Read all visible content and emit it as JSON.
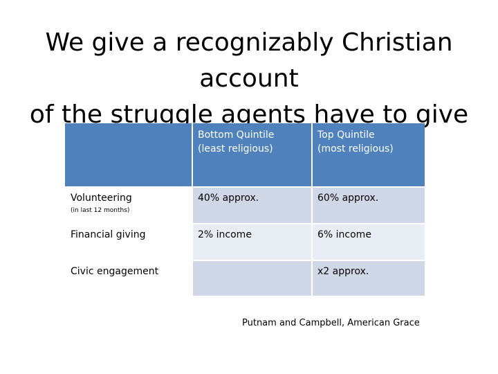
{
  "slide": {
    "title_line1": "We give a recognizably Christian account",
    "title_line2": "of the struggle agents have to give",
    "source": "Putnam and Campbell, American Grace"
  },
  "table": {
    "header": {
      "corner": "",
      "bottom_line1": "Bottom Quintile",
      "bottom_line2": "(least religious)",
      "top_line1": "Top Quintile",
      "top_line2": "(most religious)"
    },
    "rows": [
      {
        "label": "Volunteering",
        "sublabel": "(in last 12 months)",
        "bottom": "40% approx.",
        "top": "60% approx."
      },
      {
        "label": "Financial giving",
        "sublabel": "",
        "bottom": "2% income",
        "top": "6% income"
      },
      {
        "label": "Civic engagement",
        "sublabel": "",
        "bottom": "",
        "top": "x2 approx."
      }
    ]
  },
  "colors": {
    "header_fill": "#4f81bd",
    "row_fill_dark": "#d0d8e8",
    "row_fill_light": "#e9edf4"
  }
}
